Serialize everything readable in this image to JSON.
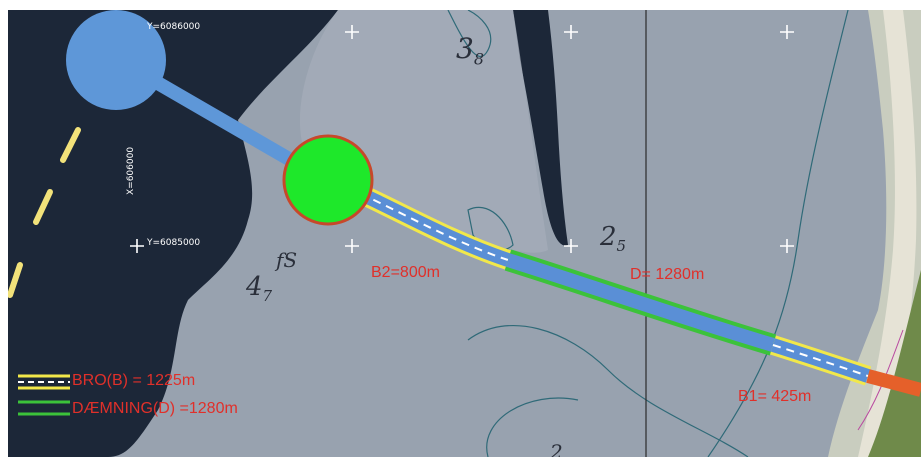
{
  "map": {
    "coordinates": {
      "top_y": "Y=6086000",
      "mid_y": "Y=6085000",
      "x_vertical": "X=606000"
    },
    "depth_soundings": [
      {
        "main": "3",
        "sub": "8"
      },
      {
        "main": "2",
        "sub": "5"
      },
      {
        "main": "4",
        "sub": "7"
      },
      {
        "main": "fS",
        "sub": ""
      },
      {
        "main": "2",
        "sub": ""
      }
    ],
    "segment_labels": {
      "b2": "B2=800m",
      "d": "D= 1280m",
      "b1": "B1= 425m"
    },
    "legend": [
      {
        "symbol": "bridge",
        "label": "BRO(B) = 1225m"
      },
      {
        "symbol": "dam",
        "label": "DÆMNING(D) =1280m"
      }
    ],
    "colors": {
      "sea_dark": "#1e2a3a",
      "shallow": "#9aa3b0",
      "bridge_yellow": "#f2e84a",
      "dam_green": "#3cc23a",
      "route_blue": "#5a8fd6",
      "label_red": "#e0302a",
      "node_green": "#1ee82a",
      "node_blue": "#5e97d8",
      "coast_tan": "#d8c9a0"
    }
  }
}
